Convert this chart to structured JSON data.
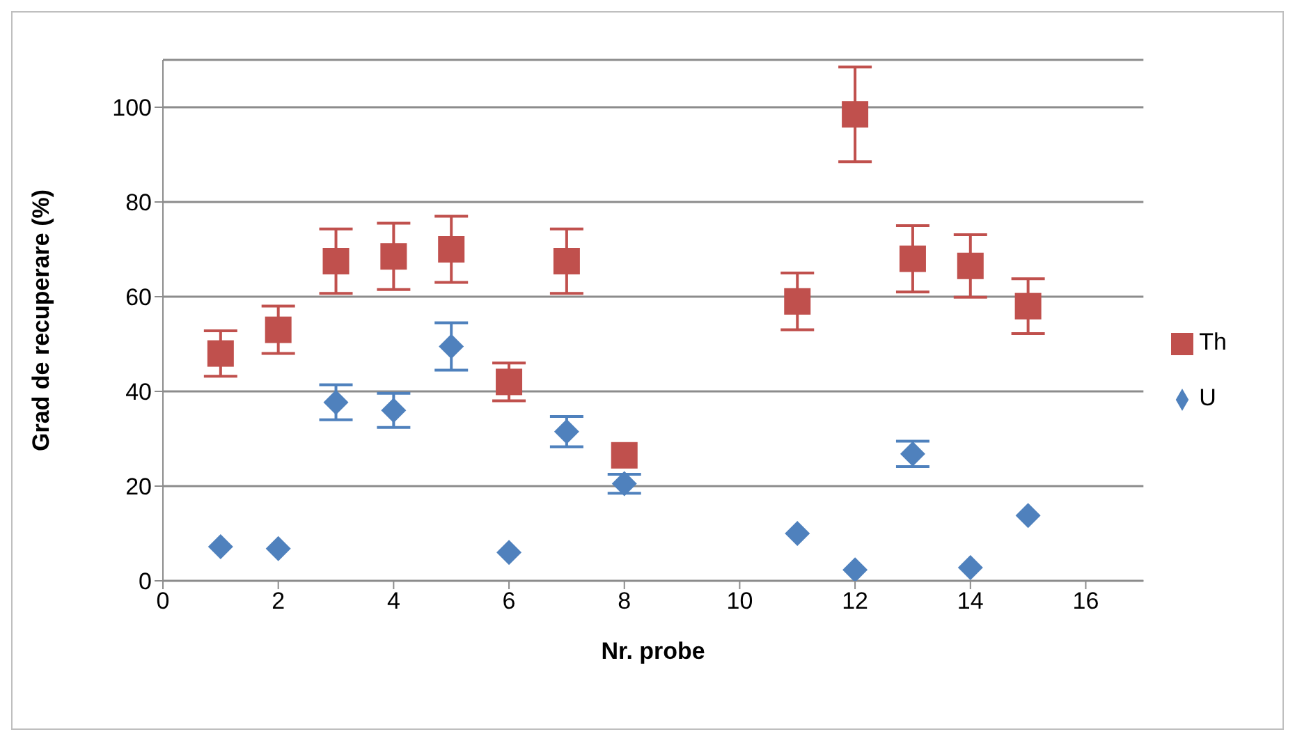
{
  "chart_data": {
    "type": "scatter",
    "xlabel": "Nr. probe",
    "ylabel": "Grad de recuperare (%)",
    "xlim": [
      0,
      17
    ],
    "xticks": [
      0,
      2,
      4,
      6,
      8,
      10,
      12,
      14,
      16
    ],
    "ylim": [
      0,
      110
    ],
    "yticks": [
      0,
      20,
      40,
      60,
      80,
      100
    ],
    "grid": "y",
    "legend": "right",
    "series": [
      {
        "name": "Th",
        "color": "#c0504d",
        "marker": "square",
        "x": [
          1,
          2,
          3,
          4,
          5,
          6,
          7,
          8,
          11,
          12,
          13,
          14,
          15
        ],
        "values": [
          48,
          53,
          67.5,
          68.5,
          70,
          42,
          67.5,
          26.5,
          59,
          98.5,
          68,
          66.5,
          58
        ],
        "errors": [
          4.8,
          5,
          6.8,
          7,
          7,
          4,
          6.8,
          null,
          6,
          10,
          7,
          6.6,
          5.8
        ]
      },
      {
        "name": "U",
        "color": "#4f81bd",
        "marker": "diamond",
        "x": [
          1,
          2,
          3,
          4,
          5,
          6,
          7,
          8,
          11,
          12,
          13,
          14,
          15
        ],
        "values": [
          7.2,
          6.8,
          37.7,
          36,
          49.5,
          6,
          31.5,
          20.5,
          10,
          2.3,
          26.8,
          2.8,
          13.8
        ],
        "errors": [
          null,
          null,
          3.7,
          3.6,
          5,
          null,
          3.2,
          2,
          null,
          null,
          2.7,
          null,
          null
        ]
      }
    ]
  }
}
